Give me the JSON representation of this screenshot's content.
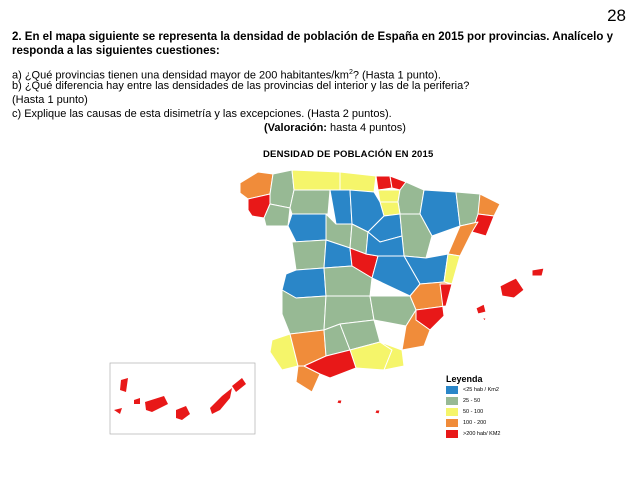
{
  "page_number": "28",
  "question": {
    "title": "2. En el mapa siguiente se representa la densidad de población de España en 2015 por provincias. Analícelo y responda a las siguientes cuestiones:",
    "a_before": "a) ¿Qué provincias tienen una densidad mayor de 200 habitantes/km",
    "a_sup": "2",
    "a_after": "? (Hasta 1 punto).",
    "b": "b) ¿Qué diferencia hay entre las densidades de las provincias del interior y las de la periferia?",
    "b_cont": "(Hasta 1 punto)",
    "c": "c) Explique las causas de esta disimetría y las excepciones. (Hasta 2 puntos).",
    "valoracion_label": "(Valoración:",
    "valoracion_value": " hasta 4 puntos)"
  },
  "map": {
    "title": "DENSIDAD DE POBLACIÓN EN 2015",
    "legend": {
      "title": "Leyenda",
      "items": [
        {
          "label": "<25 hab / Km2",
          "color": "#2a86c8"
        },
        {
          "label": "25 - 50",
          "color": "#97b994"
        },
        {
          "label": "50 - 100",
          "color": "#f5f56a"
        },
        {
          "label": "100 - 200",
          "color": "#f08c3a"
        },
        {
          "label": ">200 hab/ KM2",
          "color": "#e81818"
        }
      ]
    }
  }
}
